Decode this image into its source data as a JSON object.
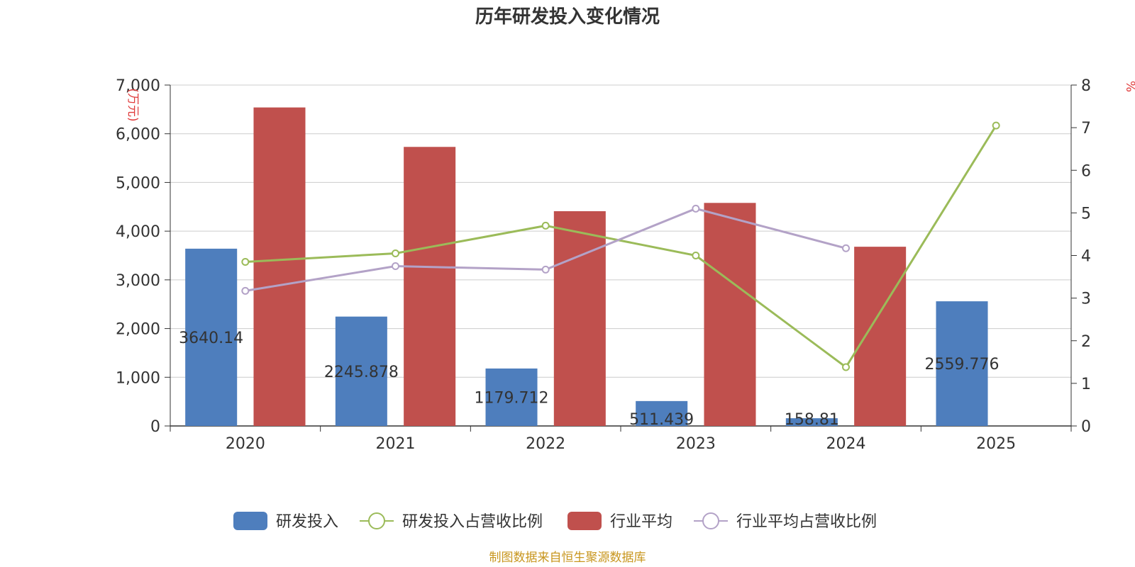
{
  "chart_data": {
    "type": "bar",
    "title": "历年研发投入变化情况",
    "categories": [
      "2020",
      "2021",
      "2022",
      "2023",
      "2024",
      "2025"
    ],
    "y_left": {
      "label": "(万元)",
      "min": 0,
      "max": 7000,
      "interval": 1000,
      "tick_labels": [
        "0",
        "1,000",
        "2,000",
        "3,000",
        "4,000",
        "5,000",
        "6,000",
        "7,000"
      ]
    },
    "y_right": {
      "label": "%",
      "min": 0,
      "max": 8,
      "interval": 1,
      "tick_labels": [
        "0",
        "1",
        "2",
        "3",
        "4",
        "5",
        "6",
        "7",
        "8"
      ]
    },
    "grid": true,
    "legend_position": "bottom",
    "series": [
      {
        "name": "研发投入",
        "kind": "bar",
        "axis": "left",
        "color": "#4e7ebd",
        "values": [
          3640.14,
          2245.878,
          1179.712,
          511.439,
          158.81,
          2559.776
        ],
        "data_labels": [
          "3640.14",
          "2245.878",
          "1179.712",
          "511.439",
          "158.81",
          "2559.776"
        ]
      },
      {
        "name": "研发投入占营收比例",
        "kind": "line",
        "axis": "right",
        "color": "#9bbb59",
        "values": [
          3.85,
          4.05,
          4.7,
          4.0,
          1.38,
          7.05
        ]
      },
      {
        "name": "行业平均",
        "kind": "bar",
        "axis": "left",
        "color": "#c0504d",
        "values": [
          6540,
          5730,
          4410,
          4580,
          3680,
          null
        ]
      },
      {
        "name": "行业平均占营收比例",
        "kind": "line",
        "axis": "right",
        "color": "#b3a2c7",
        "values": [
          3.17,
          3.75,
          3.67,
          5.1,
          4.17,
          null
        ]
      }
    ]
  },
  "footer": {
    "source": "制图数据来自恒生聚源数据库",
    "source_color": "#c8961e"
  }
}
